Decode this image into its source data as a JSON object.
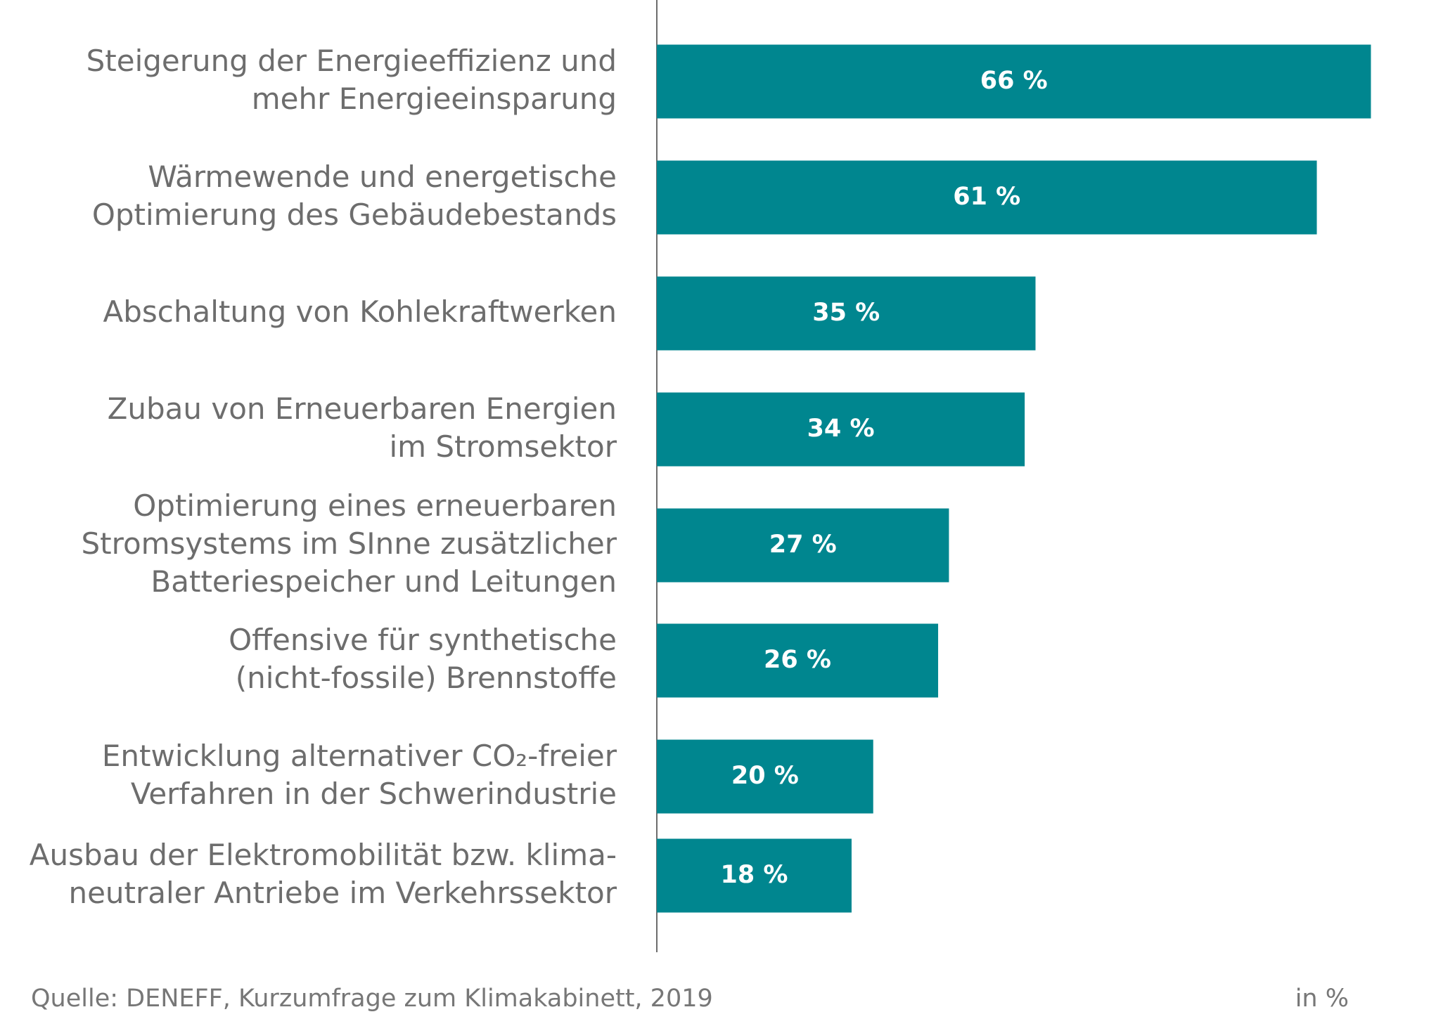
{
  "chart_data": {
    "type": "bar",
    "orientation": "horizontal",
    "categories": [
      [
        "Steigerung der Energieeffizienz und",
        "mehr Energieeinsparung"
      ],
      [
        "Wärmewende und energetische",
        "Optimierung des Gebäudebestands"
      ],
      [
        "Abschaltung von Kohlekraftwerken"
      ],
      [
        "Zubau von Erneuerbaren Energien",
        "im Stromsektor"
      ],
      [
        "Optimierung eines erneuerbaren",
        "Stromsystems im SInne zusätzlicher",
        "Batteriespeicher und Leitungen"
      ],
      [
        "Offensive für synthetische",
        "(nicht-fossile) Brennstoffe"
      ],
      [
        "Entwicklung alternativer CO₂-freier",
        "Verfahren in der Schwerindustrie"
      ],
      [
        "Ausbau der Elektromobilität bzw. klima-",
        "neutraler Antriebe im Verkehrssektor"
      ]
    ],
    "values": [
      66,
      61,
      35,
      34,
      27,
      26,
      20,
      18
    ],
    "value_labels": [
      "66 %",
      "61 %",
      "35 %",
      "34 %",
      "27 %",
      "26 %",
      "20 %",
      "18 %"
    ],
    "color": "#00868f",
    "xlim": [
      0,
      70
    ],
    "source": "Quelle: DENEFF, Kurzumfrage zum Klimakabinett, 2019",
    "unit": "in %"
  }
}
